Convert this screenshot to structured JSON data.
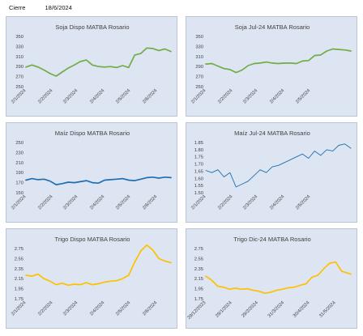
{
  "header": {
    "label": "Cierre",
    "date": "18/6/2024"
  },
  "chart_data": [
    {
      "type": "line",
      "title": "Soja Dispo MATBA Rosario",
      "color": "#70ad47",
      "stroke": "thick",
      "yticks": [
        "350",
        "330",
        "310",
        "290",
        "270",
        "250"
      ],
      "ylim": [
        250,
        350
      ],
      "xticks": [
        "2/1/2024",
        "2/2/2024",
        "2/3/2024",
        "2/4/2024",
        "2/5/2024",
        "2/6/2024"
      ],
      "x_start": "2024-01-02",
      "x_end": "2024-06-18",
      "series": [
        {
          "x": [
            "2024-01-02",
            "2024-01-09",
            "2024-01-16",
            "2024-01-23",
            "2024-01-30",
            "2024-02-06",
            "2024-02-13",
            "2024-02-20",
            "2024-02-27",
            "2024-03-05",
            "2024-03-12",
            "2024-03-19",
            "2024-03-26",
            "2024-04-02",
            "2024-04-09",
            "2024-04-16",
            "2024-04-23",
            "2024-04-30",
            "2024-05-07",
            "2024-05-14",
            "2024-05-21",
            "2024-05-28",
            "2024-06-04",
            "2024-06-11",
            "2024-06-18"
          ],
          "values": [
            289,
            293,
            289,
            283,
            276,
            271,
            279,
            287,
            293,
            300,
            303,
            293,
            290,
            289,
            290,
            288,
            292,
            288,
            313,
            316,
            327,
            326,
            322,
            325,
            320
          ]
        }
      ]
    },
    {
      "type": "line",
      "title": "Soja Jul-24 MATBA Rosario",
      "color": "#70ad47",
      "stroke": "thick",
      "yticks": [
        "350",
        "330",
        "310",
        "290",
        "270",
        "250"
      ],
      "ylim": [
        250,
        350
      ],
      "xticks": [
        "2/1/2024",
        "2/2/2024",
        "2/3/2024",
        "2/4/2024",
        "2/5/2024"
      ],
      "x_start": "2024-01-02",
      "x_end": "2024-06-18",
      "series": [
        {
          "x": [
            "2024-01-02",
            "2024-01-09",
            "2024-01-16",
            "2024-01-23",
            "2024-01-30",
            "2024-02-06",
            "2024-02-13",
            "2024-02-20",
            "2024-02-27",
            "2024-03-05",
            "2024-03-12",
            "2024-03-19",
            "2024-03-26",
            "2024-04-02",
            "2024-04-09",
            "2024-04-16",
            "2024-04-23",
            "2024-04-30",
            "2024-05-07",
            "2024-05-14",
            "2024-05-21",
            "2024-05-28",
            "2024-06-04",
            "2024-06-11",
            "2024-06-18"
          ],
          "values": [
            295,
            296,
            291,
            286,
            284,
            278,
            283,
            292,
            296,
            297,
            299,
            297,
            296,
            297,
            297,
            296,
            301,
            302,
            312,
            313,
            321,
            325,
            324,
            323,
            321
          ]
        }
      ]
    },
    {
      "type": "line",
      "title": "Maíz Dispo MATBA Rosario",
      "color": "#1f6fb2",
      "stroke": "thick",
      "yticks": [
        "250",
        "230",
        "210",
        "190",
        "170",
        "150"
      ],
      "ylim": [
        150,
        250
      ],
      "xticks": [
        "2/1/2024",
        "2/2/2024",
        "2/3/2024",
        "2/4/2024",
        "2/5/2024",
        "2/6/2024"
      ],
      "x_start": "2024-01-02",
      "x_end": "2024-06-18",
      "series": [
        {
          "x": [
            "2024-01-02",
            "2024-01-09",
            "2024-01-16",
            "2024-01-23",
            "2024-01-30",
            "2024-02-06",
            "2024-02-13",
            "2024-02-20",
            "2024-02-27",
            "2024-03-05",
            "2024-03-12",
            "2024-03-19",
            "2024-03-26",
            "2024-04-02",
            "2024-04-09",
            "2024-04-16",
            "2024-04-23",
            "2024-04-30",
            "2024-05-07",
            "2024-05-14",
            "2024-05-21",
            "2024-05-28",
            "2024-06-04",
            "2024-06-11",
            "2024-06-18"
          ],
          "values": [
            175,
            178,
            176,
            177,
            173,
            166,
            168,
            171,
            170,
            172,
            174,
            170,
            169,
            175,
            176,
            177,
            178,
            175,
            174,
            177,
            180,
            181,
            179,
            181,
            180
          ]
        }
      ]
    },
    {
      "type": "line",
      "title": "Maíz Jul-24 MATBA Rosario",
      "color": "#1f6fb2",
      "stroke": "thin",
      "yticks": [
        "1.85",
        "1.80",
        "1.75",
        "1.70",
        "1.65",
        "1.60",
        "1.55",
        "1.50"
      ],
      "ylim": [
        1.5,
        1.85
      ],
      "xticks": [
        "2/1/2024",
        "2/2/2024",
        "2/3/2024",
        "2/4/2024",
        "2/5/2024"
      ],
      "x_start": "2024-01-02",
      "x_end": "2024-06-18",
      "series": [
        {
          "x": [
            "2024-01-02",
            "2024-01-09",
            "2024-01-16",
            "2024-01-23",
            "2024-01-30",
            "2024-02-06",
            "2024-02-13",
            "2024-02-20",
            "2024-02-27",
            "2024-03-05",
            "2024-03-12",
            "2024-03-19",
            "2024-03-26",
            "2024-04-02",
            "2024-04-09",
            "2024-04-16",
            "2024-04-23",
            "2024-04-30",
            "2024-05-07",
            "2024-05-14",
            "2024-05-21",
            "2024-05-28",
            "2024-06-04",
            "2024-06-11",
            "2024-06-18"
          ],
          "values": [
            1.655,
            1.64,
            1.66,
            1.61,
            1.64,
            1.54,
            1.56,
            1.58,
            1.62,
            1.66,
            1.64,
            1.68,
            1.69,
            1.71,
            1.73,
            1.75,
            1.77,
            1.74,
            1.79,
            1.76,
            1.8,
            1.79,
            1.83,
            1.84,
            1.81
          ]
        }
      ]
    },
    {
      "type": "line",
      "title": "Trigo Dispo MATBA Rosario",
      "color": "#ffc000",
      "stroke": "thick",
      "yticks": [
        "2.75",
        "2.55",
        "2.35",
        "2.15",
        "1.95",
        "1.75"
      ],
      "ylim": [
        1.75,
        2.75
      ],
      "xticks": [
        "2/1/2024",
        "2/2/2024",
        "2/3/2024",
        "2/4/2024",
        "2/5/2024",
        "2/6/2024"
      ],
      "x_start": "2024-01-02",
      "x_end": "2024-06-18",
      "series": [
        {
          "x": [
            "2024-01-02",
            "2024-01-09",
            "2024-01-16",
            "2024-01-23",
            "2024-01-30",
            "2024-02-06",
            "2024-02-13",
            "2024-02-20",
            "2024-02-27",
            "2024-03-05",
            "2024-03-12",
            "2024-03-19",
            "2024-03-26",
            "2024-04-02",
            "2024-04-09",
            "2024-04-16",
            "2024-04-23",
            "2024-04-30",
            "2024-05-07",
            "2024-05-14",
            "2024-05-21",
            "2024-05-28",
            "2024-06-04",
            "2024-06-11",
            "2024-06-18"
          ],
          "values": [
            2.22,
            2.2,
            2.24,
            2.15,
            2.1,
            2.03,
            2.06,
            2.02,
            2.04,
            2.03,
            2.07,
            2.03,
            2.05,
            2.08,
            2.1,
            2.11,
            2.15,
            2.22,
            2.48,
            2.7,
            2.82,
            2.72,
            2.55,
            2.5,
            2.47
          ]
        }
      ]
    },
    {
      "type": "line",
      "title": "Trigo Dic-24 MATBA Rosario",
      "color": "#ffc000",
      "stroke": "thick",
      "yticks": [
        "2.75",
        "2.55",
        "2.35",
        "2.15",
        "1.95",
        "1.75"
      ],
      "ylim": [
        1.75,
        2.75
      ],
      "xticks": [
        "29/12/2023",
        "29/1/2024",
        "29/2/2024",
        "31/3/2024",
        "30/4/2024",
        "31/5/2024"
      ],
      "x_start": "2023-12-29",
      "x_end": "2024-06-18",
      "series": [
        {
          "x": [
            "2023-12-29",
            "2024-01-05",
            "2024-01-12",
            "2024-01-19",
            "2024-01-26",
            "2024-02-02",
            "2024-02-09",
            "2024-02-16",
            "2024-02-23",
            "2024-03-01",
            "2024-03-08",
            "2024-03-15",
            "2024-03-22",
            "2024-03-29",
            "2024-04-05",
            "2024-04-12",
            "2024-04-19",
            "2024-04-26",
            "2024-05-03",
            "2024-05-10",
            "2024-05-17",
            "2024-05-24",
            "2024-05-31",
            "2024-06-07",
            "2024-06-18"
          ],
          "values": [
            2.2,
            2.12,
            2.0,
            1.98,
            1.94,
            1.96,
            1.94,
            1.95,
            1.92,
            1.9,
            1.86,
            1.88,
            1.92,
            1.94,
            1.97,
            1.98,
            2.02,
            2.05,
            2.18,
            2.22,
            2.35,
            2.46,
            2.48,
            2.3,
            2.24
          ]
        }
      ]
    }
  ]
}
